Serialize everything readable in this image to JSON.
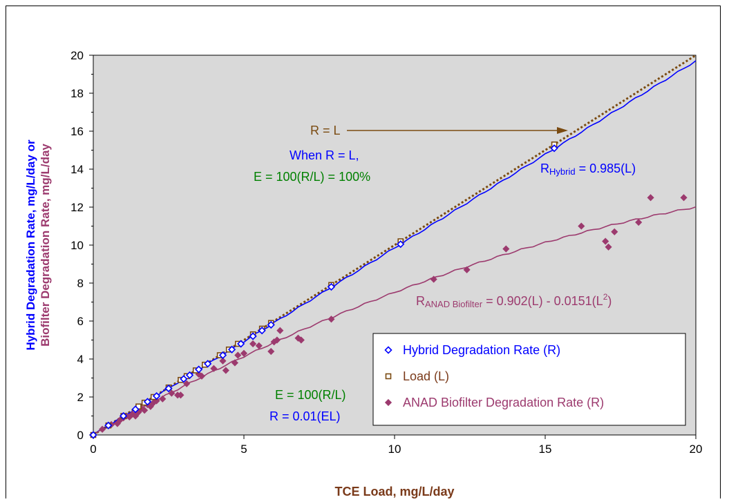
{
  "chart_data": {
    "type": "scatter",
    "xlabel": "TCE Load, mg/L/day",
    "ylabel_line1": "Hybrid Degradation Rate, mg/L/day or",
    "ylabel_line2": "Biofilter Degradation Rate, mg/L/day",
    "xlim": [
      0,
      20
    ],
    "ylim": [
      0,
      20
    ],
    "x_ticks": [
      0,
      5,
      10,
      15,
      20
    ],
    "y_ticks": [
      0,
      2,
      4,
      6,
      8,
      10,
      12,
      14,
      16,
      18,
      20
    ],
    "grid": false,
    "legend_position": "bottom-right",
    "series": [
      {
        "name": "Hybrid Degradation Rate (R)",
        "marker": "open-diamond",
        "color": "#0000ff",
        "points": [
          [
            0,
            0
          ],
          [
            0.5,
            0.5
          ],
          [
            1.0,
            1.0
          ],
          [
            1.4,
            1.35
          ],
          [
            1.8,
            1.75
          ],
          [
            2.1,
            2.05
          ],
          [
            2.5,
            2.45
          ],
          [
            3.0,
            2.95
          ],
          [
            3.2,
            3.15
          ],
          [
            3.5,
            3.45
          ],
          [
            3.8,
            3.75
          ],
          [
            4.3,
            4.2
          ],
          [
            4.6,
            4.5
          ],
          [
            4.9,
            4.8
          ],
          [
            5.3,
            5.2
          ],
          [
            5.6,
            5.5
          ],
          [
            5.9,
            5.8
          ],
          [
            7.9,
            7.8
          ],
          [
            10.2,
            10.05
          ],
          [
            15.3,
            15.1
          ]
        ]
      },
      {
        "name": "Load (L)",
        "marker": "open-square",
        "color": "#7a4a10",
        "points": [
          [
            0,
            0
          ],
          [
            0.5,
            0.5
          ],
          [
            1.0,
            1.0
          ],
          [
            1.5,
            1.5
          ],
          [
            1.7,
            1.7
          ],
          [
            2.0,
            2.0
          ],
          [
            2.5,
            2.5
          ],
          [
            2.9,
            2.9
          ],
          [
            3.1,
            3.1
          ],
          [
            3.4,
            3.4
          ],
          [
            3.7,
            3.7
          ],
          [
            4.2,
            4.2
          ],
          [
            4.5,
            4.5
          ],
          [
            4.8,
            4.8
          ],
          [
            5.3,
            5.3
          ],
          [
            5.6,
            5.6
          ],
          [
            5.9,
            5.9
          ],
          [
            7.9,
            7.9
          ],
          [
            10.2,
            10.2
          ],
          [
            15.3,
            15.3
          ]
        ]
      },
      {
        "name": "ANAD Biofilter Degradation Rate (R)",
        "marker": "filled-diamond",
        "color": "#9c3a6e",
        "points": [
          [
            0,
            0
          ],
          [
            0.3,
            0.3
          ],
          [
            0.5,
            0.5
          ],
          [
            0.6,
            0.55
          ],
          [
            0.8,
            0.6
          ],
          [
            0.9,
            0.8
          ],
          [
            1.0,
            0.9
          ],
          [
            1.1,
            1.0
          ],
          [
            1.2,
            0.95
          ],
          [
            1.3,
            1.1
          ],
          [
            1.4,
            1.0
          ],
          [
            1.5,
            1.2
          ],
          [
            1.6,
            1.4
          ],
          [
            1.7,
            1.3
          ],
          [
            1.8,
            1.6
          ],
          [
            1.9,
            1.5
          ],
          [
            2.0,
            1.7
          ],
          [
            2.1,
            1.8
          ],
          [
            2.3,
            1.9
          ],
          [
            2.6,
            2.2
          ],
          [
            2.8,
            2.1
          ],
          [
            2.9,
            2.1
          ],
          [
            3.1,
            2.7
          ],
          [
            3.5,
            3.2
          ],
          [
            3.6,
            3.1
          ],
          [
            4.0,
            3.5
          ],
          [
            4.3,
            3.9
          ],
          [
            4.4,
            3.4
          ],
          [
            4.7,
            3.8
          ],
          [
            4.8,
            4.2
          ],
          [
            5.0,
            4.3
          ],
          [
            5.3,
            4.8
          ],
          [
            5.5,
            4.7
          ],
          [
            5.9,
            4.4
          ],
          [
            6.0,
            4.9
          ],
          [
            6.1,
            5.0
          ],
          [
            6.2,
            5.5
          ],
          [
            6.8,
            5.1
          ],
          [
            6.9,
            5.0
          ],
          [
            7.9,
            6.1
          ],
          [
            11.3,
            8.2
          ],
          [
            12.4,
            8.7
          ],
          [
            13.7,
            9.8
          ],
          [
            16.2,
            11.0
          ],
          [
            17.0,
            10.2
          ],
          [
            17.1,
            9.9
          ],
          [
            17.3,
            10.7
          ],
          [
            18.1,
            11.2
          ],
          [
            18.5,
            12.5
          ],
          [
            19.6,
            12.5
          ]
        ]
      }
    ],
    "fits": [
      {
        "name": "R = L",
        "type": "dotted-line",
        "color": "#7a4a10",
        "a": 1.0,
        "b": 0
      },
      {
        "name": "R_Hybrid",
        "type": "line",
        "color": "#0000ff",
        "a": 0.985,
        "b": 0
      },
      {
        "name": "R_ANAD",
        "type": "curve",
        "color": "#9c3a6e",
        "a": 0.902,
        "b": -0.0151
      }
    ],
    "annotations": {
      "r_equals_l": "R = L",
      "when_r_equals_l": "When R = L,",
      "e_100_percent": "E = 100(R/L) = 100%",
      "hybrid_eq_base": "R",
      "hybrid_eq_sub": "Hybrid",
      "hybrid_eq_rest": " = 0.985(L)",
      "anad_eq_base": "R",
      "anad_eq_sub": "ANAD Biofilter",
      "anad_eq_rest": " = 0.902(L) - 0.0151(L",
      "anad_eq_sup": "2",
      "anad_eq_end": ")",
      "e_formula": "E = 100(R/L)",
      "r_formula": "R = 0.01(EL)"
    }
  }
}
